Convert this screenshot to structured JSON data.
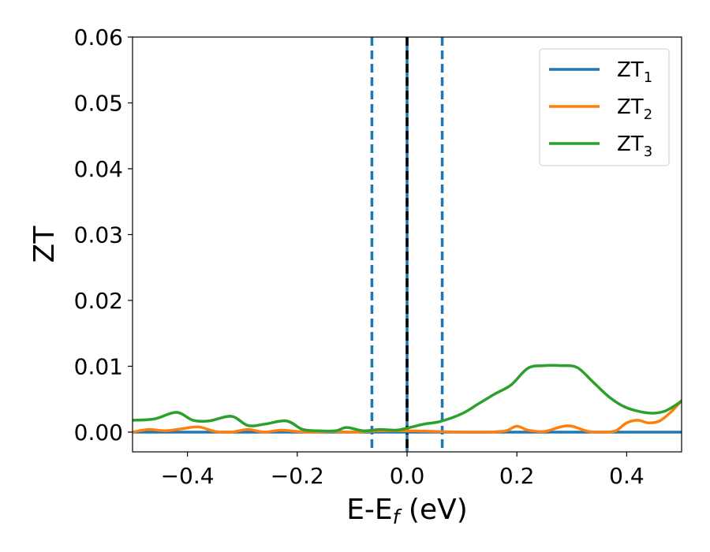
{
  "chart_data": {
    "type": "line",
    "xlabel": "E-E",
    "xlabel_sub": "f",
    "xlabel_suffix": " (eV)",
    "ylabel": "ZT",
    "xlim": [
      -0.5,
      0.5
    ],
    "ylim": [
      -0.003,
      0.06
    ],
    "x_ticks": [
      -0.4,
      -0.2,
      0.0,
      0.2,
      0.4
    ],
    "x_tick_labels": [
      "−0.4",
      "−0.2",
      "0.0",
      "0.2",
      "0.4"
    ],
    "y_ticks": [
      0.0,
      0.01,
      0.02,
      0.03,
      0.04,
      0.05,
      0.06
    ],
    "y_tick_labels": [
      "0.00",
      "0.01",
      "0.02",
      "0.03",
      "0.04",
      "0.05",
      "0.06"
    ],
    "grid": false,
    "legend_position": "top-right",
    "vlines": [
      {
        "x": -0.064,
        "style": "dashed",
        "color": "#1f77b4"
      },
      {
        "x": 0.064,
        "style": "dashed",
        "color": "#1f77b4"
      },
      {
        "x": 0.0,
        "style": "solid",
        "color": "#1f77b4"
      },
      {
        "x": 0.0,
        "style": "dashed",
        "color": "#000000"
      }
    ],
    "series": [
      {
        "name": "ZT",
        "name_sub": "1",
        "color": "#1f77b4",
        "x": [
          -0.5,
          -0.3,
          -0.15,
          -0.1,
          -0.05,
          0.0,
          0.05,
          0.1,
          0.3,
          0.5
        ],
        "y": [
          0.0,
          0.0,
          0.0,
          0.0,
          0.0,
          0.0,
          0.0,
          0.0,
          0.0,
          0.0
        ]
      },
      {
        "name": "ZT",
        "name_sub": "2",
        "color": "#ff7f0e",
        "x": [
          -0.5,
          -0.47,
          -0.44,
          -0.41,
          -0.38,
          -0.35,
          -0.32,
          -0.29,
          -0.26,
          -0.23,
          -0.2,
          -0.17,
          -0.14,
          -0.1,
          -0.05,
          0.0,
          0.05,
          0.1,
          0.15,
          0.18,
          0.2,
          0.22,
          0.25,
          0.28,
          0.3,
          0.33,
          0.36,
          0.38,
          0.4,
          0.42,
          0.44,
          0.46,
          0.48,
          0.5
        ],
        "y": [
          0.0,
          0.0004,
          0.0002,
          0.0005,
          0.0008,
          0.0001,
          0.0,
          0.0004,
          0.0,
          0.0003,
          0.0001,
          0.0,
          0.0001,
          0.0,
          0.0002,
          0.0002,
          0.0001,
          0.0,
          0.0,
          0.0002,
          0.0009,
          0.0003,
          0.0001,
          0.0008,
          0.0009,
          0.0001,
          0.0,
          0.0002,
          0.0014,
          0.0018,
          0.0014,
          0.0017,
          0.003,
          0.0048
        ]
      },
      {
        "name": "ZT",
        "name_sub": "3",
        "color": "#2ca02c",
        "x": [
          -0.5,
          -0.46,
          -0.42,
          -0.39,
          -0.36,
          -0.32,
          -0.29,
          -0.26,
          -0.22,
          -0.19,
          -0.16,
          -0.13,
          -0.11,
          -0.08,
          -0.05,
          -0.02,
          0.0,
          0.03,
          0.06,
          0.1,
          0.13,
          0.16,
          0.19,
          0.22,
          0.25,
          0.28,
          0.31,
          0.34,
          0.37,
          0.4,
          0.44,
          0.47,
          0.5
        ],
        "y": [
          0.0018,
          0.002,
          0.003,
          0.0018,
          0.0017,
          0.0024,
          0.001,
          0.0012,
          0.0017,
          0.0004,
          0.0002,
          0.0002,
          0.0007,
          0.0002,
          0.0004,
          0.0003,
          0.0006,
          0.0012,
          0.0016,
          0.0028,
          0.0043,
          0.0058,
          0.0072,
          0.0097,
          0.0101,
          0.0101,
          0.0098,
          0.0075,
          0.0052,
          0.0037,
          0.0029,
          0.0032,
          0.0047
        ]
      }
    ]
  }
}
